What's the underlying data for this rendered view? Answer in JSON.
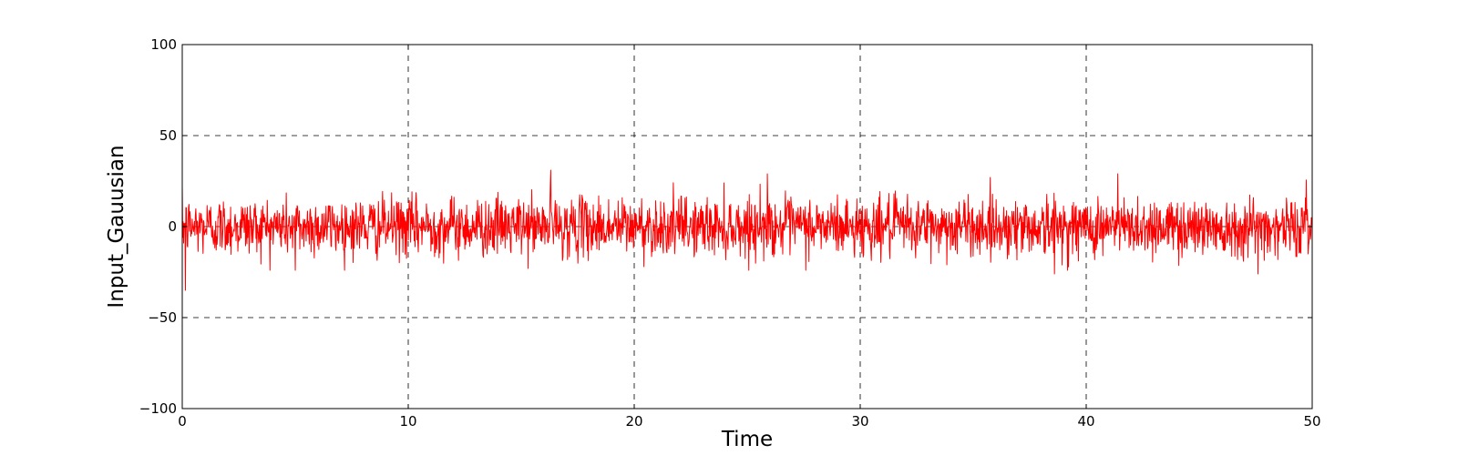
{
  "chart_data": {
    "type": "line",
    "title": "",
    "xlabel": "Time",
    "ylabel": "Input_Gauusian",
    "xlim": [
      0,
      50
    ],
    "ylim": [
      -100,
      100
    ],
    "xticks": [
      0,
      10,
      20,
      30,
      40,
      50
    ],
    "xtick_labels": [
      "0",
      "10",
      "20",
      "30",
      "40",
      "50"
    ],
    "yticks": [
      -100,
      -50,
      0,
      50,
      100
    ],
    "ytick_labels": [
      "−100",
      "−50",
      "0",
      "50",
      "100"
    ],
    "grid": true,
    "grid_style": "dashed",
    "legend": "none",
    "series": [
      {
        "color": "#ff0000",
        "description": "Gaussian noise centred on 0, roughly std 8, peaks near +31 and -35",
        "x_range": [
          0,
          50
        ],
        "sample_count": 2500,
        "mean": 0,
        "std": 8,
        "extremes": [
          {
            "x": 0.15,
            "y": -35
          },
          {
            "x": 16.3,
            "y": 31
          },
          {
            "x": 25.9,
            "y": 29
          },
          {
            "x": 41.4,
            "y": 29
          },
          {
            "x": 38.6,
            "y": -26
          },
          {
            "x": 47.6,
            "y": -26
          },
          {
            "x": 5.0,
            "y": -24
          }
        ]
      }
    ]
  }
}
